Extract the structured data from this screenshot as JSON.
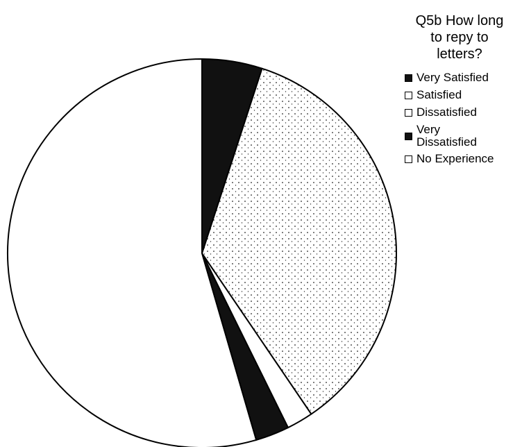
{
  "chart_data": {
    "type": "pie",
    "title_lines": [
      "Q5b How long",
      "to repy to",
      "letters?"
    ],
    "slices": [
      {
        "label": "Very Satisfied",
        "value": 5,
        "color": "#111111",
        "pattern": "solid"
      },
      {
        "label": "Satisfied",
        "value": 35.5,
        "color": "#ffffff",
        "pattern": "dotted"
      },
      {
        "label": "Dissatisfied",
        "value": 2.2,
        "color": "#ffffff",
        "pattern": "plain"
      },
      {
        "label": "Very Dissatisfied",
        "value": 2.8,
        "color": "#111111",
        "pattern": "solid"
      },
      {
        "label": "No Experience",
        "value": 54.5,
        "color": "#ffffff",
        "pattern": "plain"
      }
    ],
    "legend": [
      {
        "label": "Very Satisfied",
        "swatch": "dark"
      },
      {
        "label": "Satisfied",
        "swatch": "plain"
      },
      {
        "label": "Dissatisfied",
        "swatch": "plain"
      },
      {
        "label": "Very Dissatisfied",
        "swatch": "dark",
        "lines": [
          "Very",
          "Dissatisfied"
        ]
      },
      {
        "label": "No Experience",
        "swatch": "plain"
      }
    ],
    "legend_position": "right",
    "start_angle_deg": 0,
    "direction": "clockwise"
  }
}
